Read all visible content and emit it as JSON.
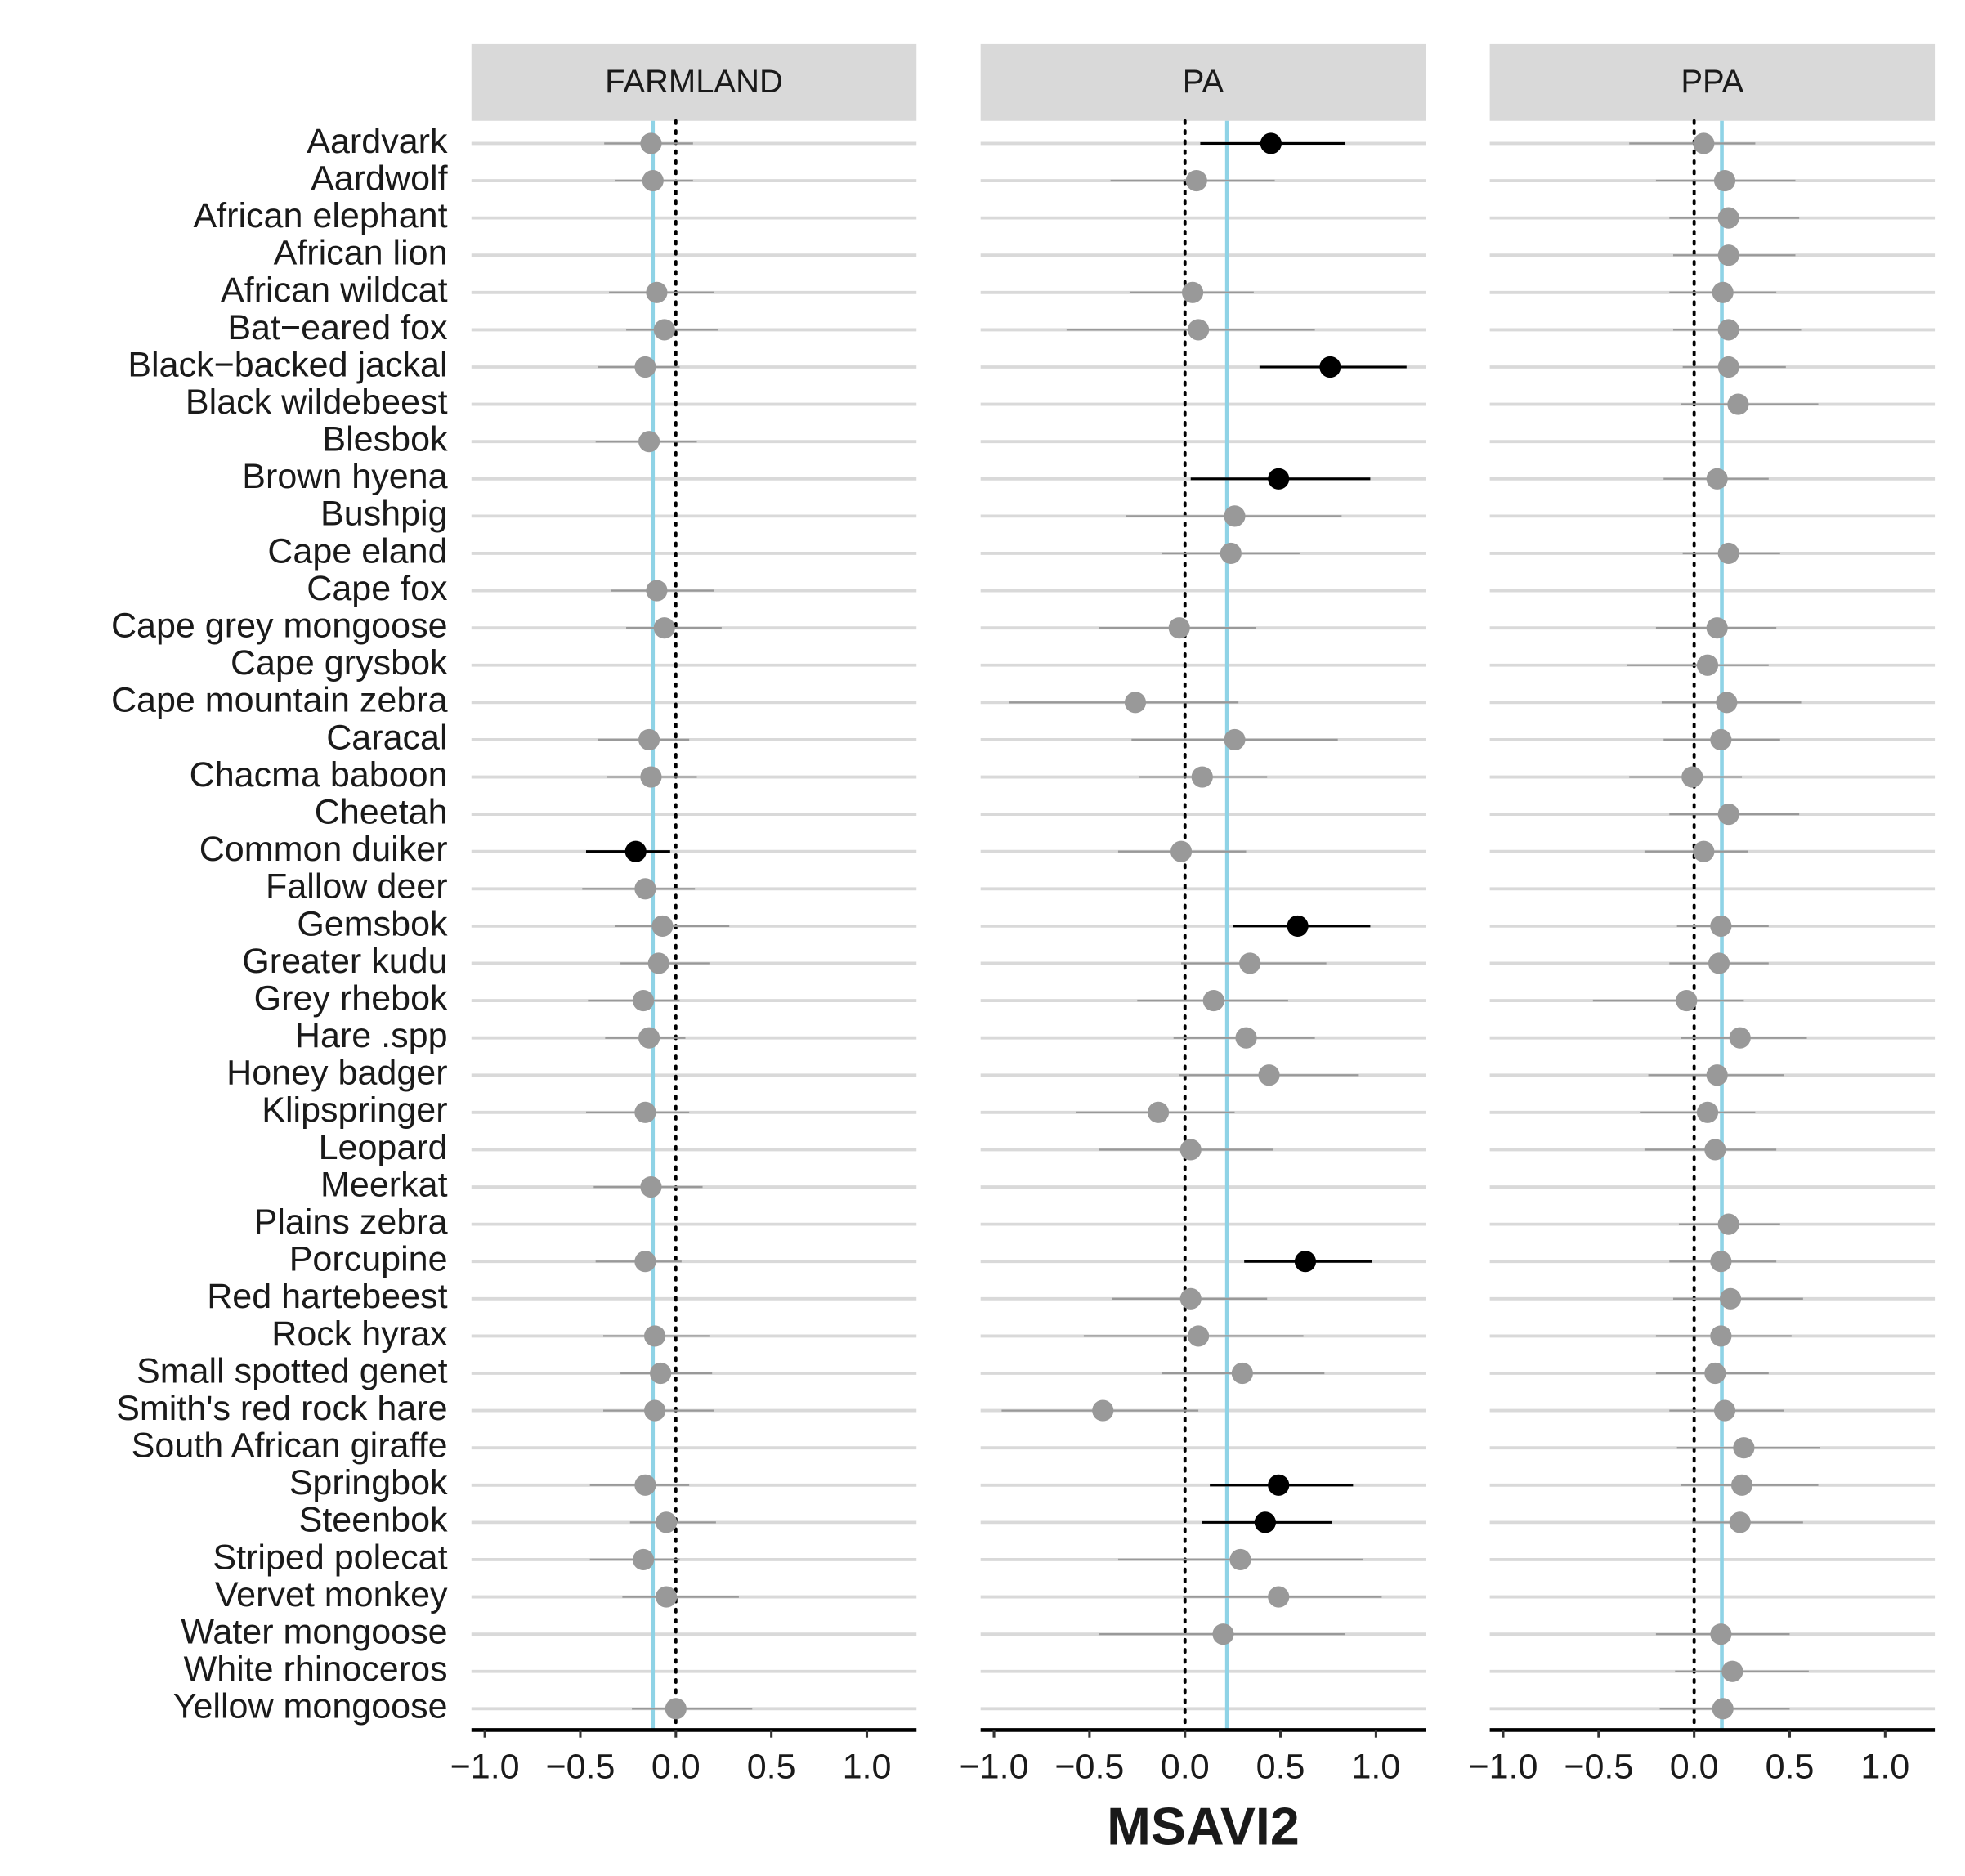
{
  "chart_data": {
    "type": "forest",
    "x_label": "MSAVI2",
    "categories": [
      "Aardvark",
      "Aardwolf",
      "African elephant",
      "African lion",
      "African wildcat",
      "Bat−eared fox",
      "Black−backed jackal",
      "Black wildebeest",
      "Blesbok",
      "Brown hyena",
      "Bushpig",
      "Cape eland",
      "Cape fox",
      "Cape grey mongoose",
      "Cape grysbok",
      "Cape mountain zebra",
      "Caracal",
      "Chacma baboon",
      "Cheetah",
      "Common duiker",
      "Fallow deer",
      "Gemsbok",
      "Greater kudu",
      "Grey rhebok",
      "Hare .spp",
      "Honey badger",
      "Klipspringer",
      "Leopard",
      "Meerkat",
      "Plains zebra",
      "Porcupine",
      "Red hartebeest",
      "Rock hyrax",
      "Small spotted genet",
      "Smith's red rock hare",
      "South African giraffe",
      "Springbok",
      "Steenbok",
      "Striped polecat",
      "Vervet monkey",
      "Water mongoose",
      "White rhinoceros",
      "Yellow mongoose"
    ],
    "xlim": [
      -1.07,
      1.26
    ],
    "xticks": [
      {
        "value": -1.0,
        "label": "−1.0"
      },
      {
        "value": -0.5,
        "label": "−0.5"
      },
      {
        "value": 0,
        "label": "0.0"
      },
      {
        "value": 0.5,
        "label": "0.5"
      },
      {
        "value": 1.0,
        "label": "1.0"
      }
    ],
    "zero_line": 0,
    "color": "#999999",
    "significant_color": "#000000",
    "mean_line_color": "#8fd3e6",
    "panels": [
      {
        "title": "FARMLAND",
        "mean_line": -0.12,
        "estimates": [
          -0.13,
          -0.12,
          null,
          null,
          -0.1,
          -0.06,
          -0.16,
          null,
          -0.14,
          null,
          null,
          null,
          -0.1,
          -0.06,
          null,
          null,
          -0.14,
          -0.13,
          null,
          -0.21,
          -0.16,
          -0.07,
          -0.09,
          -0.17,
          -0.14,
          null,
          -0.16,
          null,
          -0.13,
          null,
          -0.16,
          null,
          -0.11,
          -0.08,
          -0.11,
          null,
          -0.16,
          -0.05,
          -0.17,
          -0.05,
          null,
          null,
          0.0
        ],
        "lower": [
          -0.375,
          -0.32,
          null,
          null,
          -0.35,
          -0.26,
          -0.41,
          null,
          -0.42,
          null,
          null,
          null,
          -0.34,
          -0.26,
          null,
          null,
          -0.41,
          -0.36,
          null,
          -0.47,
          -0.49,
          -0.32,
          -0.29,
          -0.46,
          -0.37,
          null,
          -0.47,
          null,
          -0.43,
          null,
          -0.42,
          null,
          -0.38,
          -0.29,
          -0.38,
          null,
          -0.45,
          -0.24,
          -0.45,
          -0.28,
          null,
          null,
          -0.23
        ],
        "upper": [
          0.09,
          0.09,
          null,
          null,
          0.2,
          0.22,
          0.02,
          null,
          0.11,
          null,
          null,
          null,
          0.2,
          0.24,
          null,
          null,
          0.07,
          0.11,
          null,
          -0.03,
          0.1,
          0.28,
          0.18,
          0.02,
          0.05,
          null,
          0.07,
          null,
          0.14,
          null,
          0.03,
          null,
          0.18,
          0.19,
          0.2,
          null,
          0.07,
          0.21,
          0.02,
          0.33,
          null,
          null,
          0.4
        ],
        "significant": [
          false,
          false,
          false,
          false,
          false,
          false,
          false,
          false,
          false,
          false,
          false,
          false,
          false,
          false,
          false,
          false,
          false,
          false,
          false,
          true,
          false,
          false,
          false,
          false,
          false,
          false,
          false,
          false,
          false,
          false,
          false,
          false,
          false,
          false,
          false,
          false,
          false,
          false,
          false,
          false,
          false,
          false,
          false
        ]
      },
      {
        "title": "PA",
        "mean_line": 0.22,
        "estimates": [
          0.45,
          0.06,
          null,
          null,
          0.04,
          0.07,
          0.76,
          null,
          null,
          0.49,
          0.26,
          0.24,
          null,
          -0.03,
          null,
          -0.26,
          0.26,
          0.09,
          null,
          -0.02,
          null,
          0.59,
          0.34,
          0.15,
          0.32,
          0.44,
          -0.14,
          0.03,
          null,
          null,
          0.63,
          0.03,
          0.07,
          0.3,
          -0.43,
          null,
          0.49,
          0.42,
          0.29,
          0.49,
          0.2,
          null,
          null
        ],
        "lower": [
          0.08,
          -0.39,
          null,
          null,
          -0.29,
          -0.62,
          0.39,
          null,
          null,
          0.03,
          -0.31,
          -0.12,
          null,
          -0.45,
          null,
          -0.92,
          -0.28,
          -0.24,
          null,
          -0.35,
          null,
          0.25,
          -0.02,
          -0.25,
          -0.06,
          -0.03,
          -0.57,
          -0.45,
          null,
          null,
          0.31,
          -0.38,
          -0.53,
          -0.12,
          -0.96,
          null,
          0.13,
          0.09,
          -0.35,
          -0.01,
          -0.45,
          null,
          null
        ],
        "upper": [
          0.84,
          0.47,
          null,
          null,
          0.36,
          0.68,
          1.16,
          null,
          null,
          0.97,
          0.82,
          0.6,
          null,
          0.37,
          null,
          0.28,
          0.8,
          0.43,
          null,
          0.32,
          null,
          0.97,
          0.74,
          0.54,
          0.68,
          0.91,
          0.26,
          0.46,
          null,
          null,
          0.98,
          0.43,
          0.62,
          0.73,
          0.07,
          null,
          0.88,
          0.77,
          0.93,
          1.03,
          0.84,
          null,
          null
        ],
        "significant": [
          true,
          false,
          false,
          false,
          false,
          false,
          true,
          false,
          false,
          true,
          false,
          false,
          false,
          false,
          false,
          false,
          false,
          false,
          false,
          false,
          false,
          true,
          false,
          false,
          false,
          false,
          false,
          false,
          false,
          false,
          true,
          false,
          false,
          false,
          false,
          false,
          true,
          true,
          false,
          false,
          false,
          false,
          false
        ]
      },
      {
        "title": "PPA",
        "mean_line": 0.145,
        "estimates": [
          0.05,
          0.16,
          0.18,
          0.18,
          0.15,
          0.18,
          0.18,
          0.23,
          null,
          0.12,
          null,
          0.18,
          null,
          0.12,
          0.07,
          0.17,
          0.14,
          -0.01,
          0.18,
          0.05,
          null,
          0.14,
          0.13,
          -0.04,
          0.24,
          0.12,
          0.07,
          0.11,
          null,
          0.18,
          0.14,
          0.19,
          0.14,
          0.11,
          0.16,
          0.26,
          0.25,
          0.24,
          null,
          null,
          0.14,
          0.2,
          0.15
        ],
        "lower": [
          -0.34,
          -0.2,
          -0.13,
          -0.11,
          -0.13,
          -0.11,
          -0.06,
          -0.07,
          null,
          -0.16,
          null,
          -0.06,
          null,
          -0.2,
          -0.35,
          -0.17,
          -0.16,
          -0.34,
          -0.13,
          -0.26,
          null,
          -0.09,
          -0.13,
          -0.53,
          -0.07,
          -0.24,
          -0.28,
          -0.26,
          null,
          -0.08,
          -0.13,
          -0.11,
          -0.2,
          -0.2,
          -0.13,
          -0.09,
          -0.07,
          -0.01,
          null,
          null,
          -0.2,
          -0.1,
          -0.18
        ],
        "upper": [
          0.32,
          0.53,
          0.55,
          0.53,
          0.43,
          0.56,
          0.48,
          0.65,
          null,
          0.39,
          null,
          0.45,
          null,
          0.43,
          0.39,
          0.56,
          0.45,
          0.25,
          0.55,
          0.28,
          null,
          0.39,
          0.39,
          0.26,
          0.59,
          0.47,
          0.32,
          0.43,
          null,
          0.45,
          0.43,
          0.57,
          0.51,
          0.39,
          0.47,
          0.66,
          0.65,
          0.57,
          null,
          null,
          0.5,
          0.6,
          0.5
        ],
        "significant": [
          false,
          false,
          false,
          false,
          false,
          false,
          false,
          false,
          false,
          false,
          false,
          false,
          false,
          false,
          false,
          false,
          false,
          false,
          false,
          false,
          false,
          false,
          false,
          false,
          false,
          false,
          false,
          false,
          false,
          false,
          false,
          false,
          false,
          false,
          false,
          false,
          false,
          false,
          false,
          false,
          false,
          false,
          false
        ]
      }
    ]
  }
}
